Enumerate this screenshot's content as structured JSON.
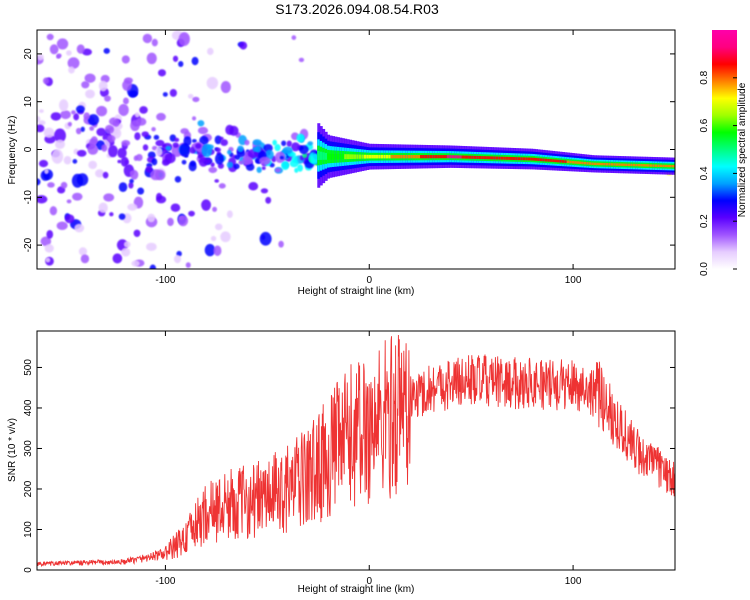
{
  "figure_title": "S173.2026.094.08.54.R03",
  "chart_data": [
    {
      "type": "heatmap",
      "name": "spectrogram",
      "xlabel": "Height of straight line (km)",
      "ylabel": "Frequency (Hz)",
      "xlim": [
        -163,
        150
      ],
      "ylim": [
        -25,
        25
      ],
      "xticks": [
        -100,
        0,
        100
      ],
      "yticks": [
        -20,
        -10,
        0,
        10,
        20
      ],
      "colorbar": {
        "label": "Normalized spectral amplitude",
        "ticks": [
          0.0,
          0.2,
          0.4,
          0.6,
          0.8
        ],
        "range": [
          0,
          1
        ],
        "colors": [
          "#ffffff",
          "#e6ccff",
          "#a055ff",
          "#5a00ff",
          "#0000ff",
          "#00a0ff",
          "#00ffff",
          "#00ff80",
          "#00ff00",
          "#a0ff00",
          "#ffff00",
          "#ff8000",
          "#ff0000",
          "#ff0080",
          "#ff00aa"
        ]
      },
      "signal_track": [
        {
          "x": -163,
          "f": 2,
          "spread": 22,
          "amp": 0.12
        },
        {
          "x": -120,
          "f": 0,
          "spread": 14,
          "amp": 0.22
        },
        {
          "x": -100,
          "f": -1,
          "spread": 9,
          "amp": 0.3
        },
        {
          "x": -60,
          "f": -1,
          "spread": 7,
          "amp": 0.35
        },
        {
          "x": -30,
          "f": -1,
          "spread": 5,
          "amp": 0.4
        },
        {
          "x": -20,
          "f": -1.5,
          "spread": 2.5,
          "amp": 0.55
        },
        {
          "x": 0,
          "f": -1.5,
          "spread": 1.5,
          "amp": 0.7
        },
        {
          "x": 40,
          "f": -1.5,
          "spread": 1.3,
          "amp": 0.9
        },
        {
          "x": 80,
          "f": -2,
          "spread": 1.2,
          "amp": 0.85
        },
        {
          "x": 110,
          "f": -3,
          "spread": 1.0,
          "amp": 0.8
        },
        {
          "x": 150,
          "f": -3.5,
          "spread": 1.0,
          "amp": 0.75
        }
      ]
    },
    {
      "type": "line",
      "name": "snr",
      "xlabel": "Height of straight line (km)",
      "ylabel": "SNR (10 * v/v)",
      "xlim": [
        -163,
        150
      ],
      "ylim": [
        0,
        590
      ],
      "xticks": [
        -100,
        0,
        100
      ],
      "yticks": [
        0,
        100,
        200,
        300,
        400,
        500
      ],
      "color": "#ee3333",
      "series": [
        {
          "name": "SNR",
          "x": [
            -163,
            -140,
            -120,
            -100,
            -90,
            -80,
            -70,
            -60,
            -50,
            -40,
            -30,
            -20,
            -10,
            0,
            10,
            20,
            30,
            40,
            50,
            60,
            70,
            80,
            90,
            100,
            110,
            115,
            120,
            130,
            140,
            150
          ],
          "values": [
            15,
            18,
            20,
            40,
            80,
            140,
            160,
            170,
            180,
            200,
            230,
            280,
            330,
            350,
            380,
            420,
            450,
            460,
            470,
            465,
            460,
            465,
            455,
            460,
            440,
            420,
            380,
            300,
            260,
            220
          ]
        }
      ]
    }
  ]
}
